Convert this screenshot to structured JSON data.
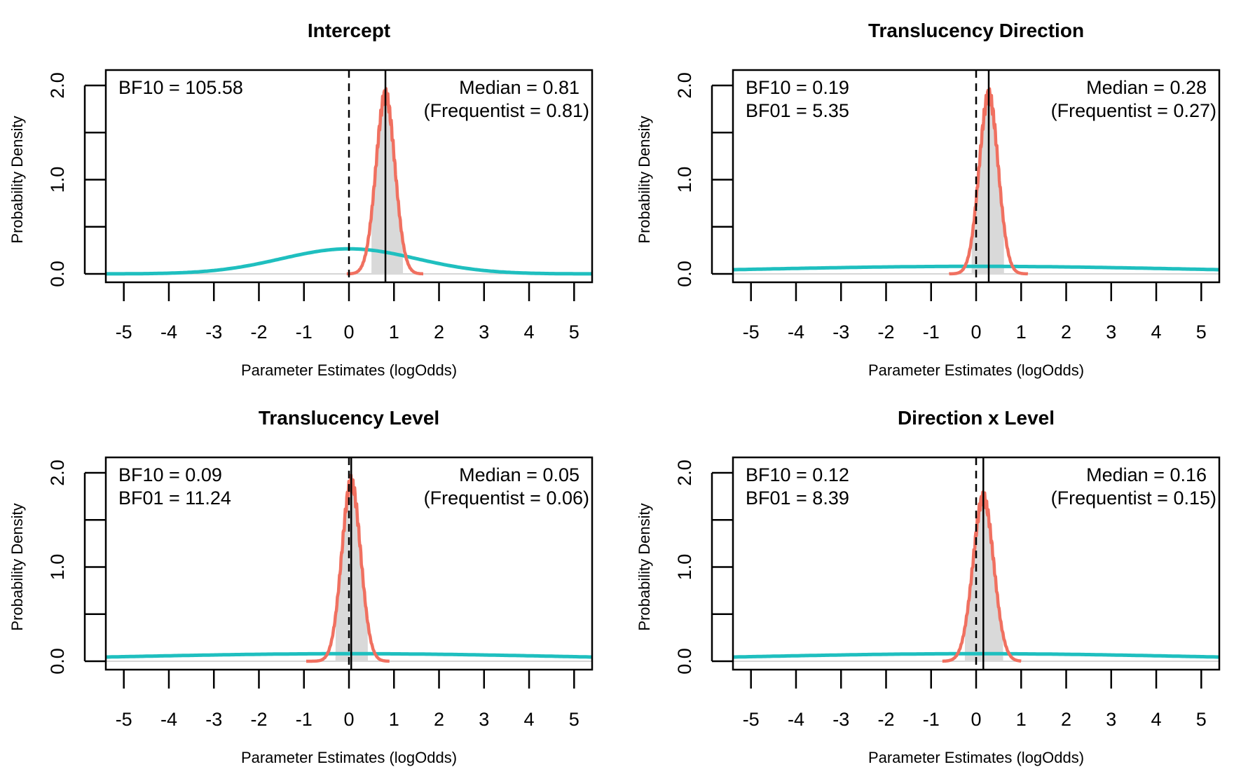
{
  "chart_data": [
    {
      "type": "line",
      "title": "Intercept",
      "xlabel": "Parameter Estimates (logOdds)",
      "ylabel": "Probability Density",
      "xlim": [
        -5.4,
        5.4
      ],
      "ylim": [
        0,
        2.0
      ],
      "x_ticks": [
        -5,
        -4,
        -3,
        -2,
        -1,
        0,
        1,
        2,
        3,
        4,
        5
      ],
      "y_ticks": [
        "0.0",
        "1.0",
        "2.0"
      ],
      "grid": false,
      "bf_lines": [
        "BF10 = 105.58"
      ],
      "median_lines": [
        "Median = 0.81",
        "(Frequentist = 0.81)"
      ],
      "prior": {
        "type": "normal",
        "mean": 0,
        "sd": 1.5
      },
      "posterior": {
        "median": 0.81,
        "sd": 0.21,
        "min": -0.05,
        "max": 1.65
      },
      "ci": [
        0.5,
        1.2
      ],
      "median_line": 0.81,
      "zero_line": 0,
      "colors": {
        "prior": "#1fbfbf",
        "posterior": "#f07060",
        "ci_fill": "#d9d9d9"
      }
    },
    {
      "type": "line",
      "title": "Translucency Direction",
      "xlabel": "Parameter Estimates (logOdds)",
      "ylabel": "Probability Density",
      "xlim": [
        -5.4,
        5.4
      ],
      "ylim": [
        0,
        2.0
      ],
      "x_ticks": [
        -5,
        -4,
        -3,
        -2,
        -1,
        0,
        1,
        2,
        3,
        4,
        5
      ],
      "y_ticks": [
        "0.0",
        "1.0",
        "2.0"
      ],
      "grid": false,
      "bf_lines": [
        "BF10 = 0.19",
        "BF01 = 5.35"
      ],
      "median_lines": [
        "Median = 0.28",
        "(Frequentist = 0.27)"
      ],
      "prior": {
        "type": "normal",
        "mean": 0,
        "sd": 5
      },
      "posterior": {
        "median": 0.28,
        "sd": 0.21,
        "min": -0.6,
        "max": 1.15
      },
      "ci": [
        -0.1,
        0.62
      ],
      "median_line": 0.28,
      "zero_line": 0,
      "colors": {
        "prior": "#1fbfbf",
        "posterior": "#f07060",
        "ci_fill": "#d9d9d9"
      }
    },
    {
      "type": "line",
      "title": "Translucency Level",
      "xlabel": "Parameter Estimates (logOdds)",
      "ylabel": "Probability Density",
      "xlim": [
        -5.4,
        5.4
      ],
      "ylim": [
        0,
        2.0
      ],
      "x_ticks": [
        -5,
        -4,
        -3,
        -2,
        -1,
        0,
        1,
        2,
        3,
        4,
        5
      ],
      "y_ticks": [
        "0.0",
        "1.0",
        "2.0"
      ],
      "grid": false,
      "bf_lines": [
        "BF10 = 0.09",
        "BF01 = 11.24"
      ],
      "median_lines": [
        "Median = 0.05",
        "(Frequentist = 0.06)"
      ],
      "prior": {
        "type": "normal",
        "mean": 0,
        "sd": 5
      },
      "posterior": {
        "median": 0.05,
        "sd": 0.21,
        "min": -0.95,
        "max": 0.9
      },
      "ci": [
        -0.3,
        0.42
      ],
      "median_line": 0.05,
      "zero_line": 0,
      "colors": {
        "prior": "#1fbfbf",
        "posterior": "#f07060",
        "ci_fill": "#d9d9d9"
      }
    },
    {
      "type": "line",
      "title": "Direction x Level",
      "xlabel": "Parameter Estimates (logOdds)",
      "ylabel": "Probability Density",
      "xlim": [
        -5.4,
        5.4
      ],
      "ylim": [
        0,
        2.0
      ],
      "x_ticks": [
        -5,
        -4,
        -3,
        -2,
        -1,
        0,
        1,
        2,
        3,
        4,
        5
      ],
      "y_ticks": [
        "0.0",
        "1.0",
        "2.0"
      ],
      "grid": false,
      "bf_lines": [
        "BF10 = 0.12",
        "BF01 = 8.39"
      ],
      "median_lines": [
        "Median = 0.16",
        "(Frequentist = 0.15)"
      ],
      "prior": {
        "type": "normal",
        "mean": 0,
        "sd": 5
      },
      "posterior": {
        "median": 0.16,
        "sd": 0.23,
        "min": -0.75,
        "max": 1.0
      },
      "ci": [
        -0.25,
        0.6
      ],
      "median_line": 0.16,
      "zero_line": 0,
      "colors": {
        "prior": "#1fbfbf",
        "posterior": "#f07060",
        "ci_fill": "#d9d9d9"
      }
    }
  ]
}
